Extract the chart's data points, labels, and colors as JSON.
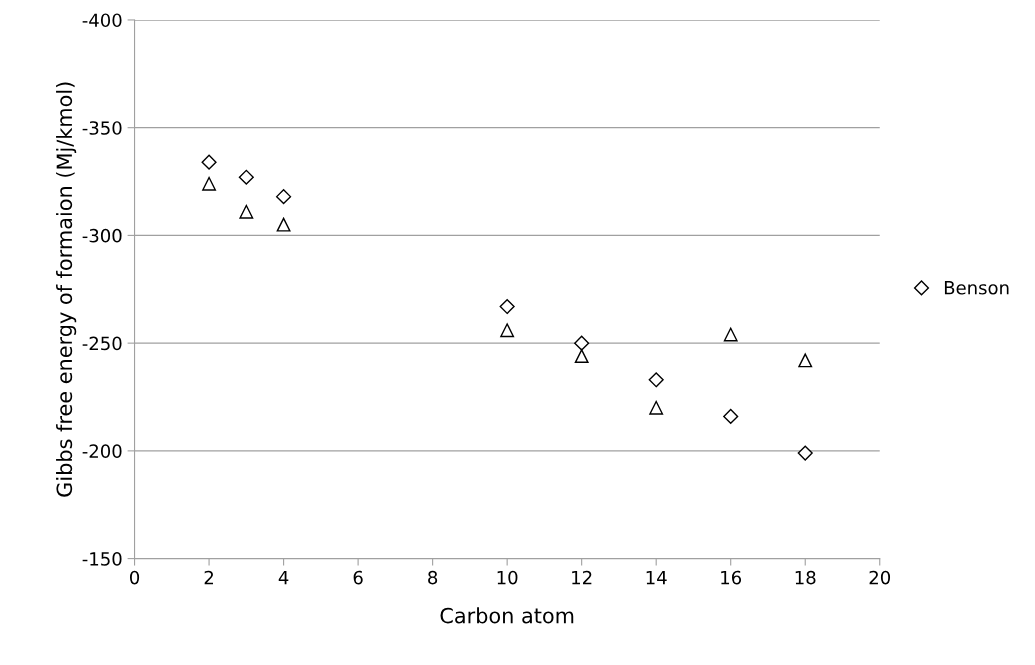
{
  "chart_data": {
    "type": "scatter",
    "xlabel": "Carbon atom",
    "ylabel": "Gibbs free energy of formaion (Mj/kmol)",
    "x": [
      2,
      3,
      4,
      10,
      12,
      14,
      16,
      18
    ],
    "series": [
      {
        "name": "Benson",
        "color": "#000000",
        "marker": "diamond",
        "values": [
          -334,
          -327,
          -318,
          -267,
          -250,
          -233,
          -216,
          -199
        ]
      },
      {
        "color": "#000000",
        "marker": "triangle",
        "values": [
          -324,
          -311,
          -305,
          -256,
          -244,
          -220,
          -254,
          -242
        ]
      }
    ],
    "xlim": [
      0,
      20
    ],
    "xticks": [
      0,
      2,
      4,
      6,
      8,
      10,
      12,
      14,
      16,
      18,
      20
    ],
    "ylim": [
      -150,
      -400
    ],
    "yticks": [
      -400,
      -350,
      -300,
      -250,
      -200,
      -150
    ],
    "grid": "y",
    "legend": "right"
  }
}
